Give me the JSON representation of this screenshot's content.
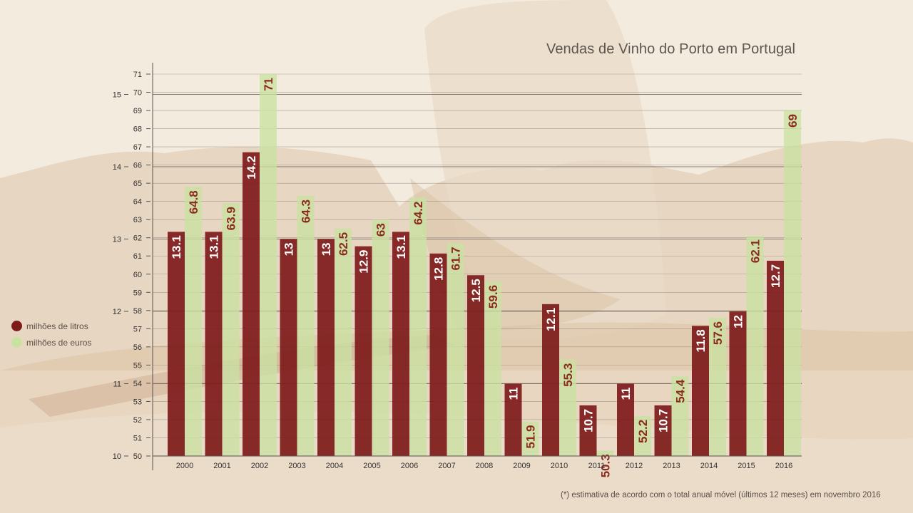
{
  "colors": {
    "litros": "#7e1c1c",
    "euros": "#c9e2a2",
    "label_on_euros": "#8b2a1f",
    "grid": "#8a7f78"
  },
  "chart_data": {
    "type": "bar",
    "title": "Vendas de Vinho do Porto em Portugal",
    "categories": [
      "2000",
      "2001",
      "2002",
      "2003",
      "2004",
      "2005",
      "2006",
      "2007",
      "2008",
      "2009",
      "2010",
      "2011",
      "2012",
      "2013",
      "2014",
      "2015",
      "2016"
    ],
    "series": [
      {
        "name": "milhões de litros",
        "axis": "left",
        "values": [
          13.1,
          13.1,
          14.2,
          13,
          13,
          12.9,
          13.1,
          12.8,
          12.5,
          11,
          12.1,
          10.7,
          11,
          10.7,
          11.8,
          12,
          12.7
        ],
        "labels": [
          "13.1",
          "13.1",
          "14.2",
          "13",
          "13",
          "12.9",
          "13.1",
          "12.8",
          "12.5",
          "11",
          "12.1",
          "10.7",
          "11",
          "10.7",
          "11.8",
          "12",
          "12.7"
        ]
      },
      {
        "name": "milhões de euros",
        "axis": "inner",
        "values": [
          64.8,
          63.9,
          71,
          64.3,
          62.5,
          63,
          64.2,
          61.7,
          59.6,
          51.9,
          55.3,
          50.3,
          52.2,
          54.4,
          57.6,
          62.1,
          69
        ],
        "labels": [
          "64.8",
          "63.9",
          "71",
          "64.3",
          "62.5",
          "63",
          "64.2",
          "61.7",
          "59.6",
          "51.9",
          "55.3",
          "50.3",
          "52.2",
          "54.4",
          "57.6",
          "62.1",
          "69"
        ]
      }
    ],
    "axes": {
      "left": {
        "range": [
          10,
          15
        ],
        "ticks": [
          "10",
          "11",
          "12",
          "13",
          "14",
          "15"
        ]
      },
      "inner": {
        "range": [
          50,
          71
        ],
        "ticks": [
          "50",
          "51",
          "52",
          "53",
          "54",
          "55",
          "56",
          "57",
          "58",
          "59",
          "60",
          "61",
          "62",
          "63",
          "64",
          "65",
          "66",
          "67",
          "68",
          "69",
          "70",
          "71"
        ]
      }
    },
    "grid": true,
    "legend_position": "left"
  },
  "legend": [
    {
      "label": "milhões de litros"
    },
    {
      "label": "milhões de euros"
    }
  ],
  "footnote": "(*) estimativa de acordo com o total anual móvel (últimos 12 meses) em novembro 2016"
}
